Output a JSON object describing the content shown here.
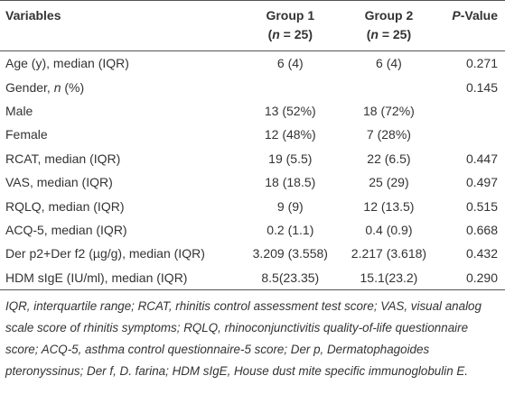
{
  "table": {
    "header": [
      [
        [
          "Variables"
        ]
      ],
      [
        [
          "Group 1"
        ],
        [
          "(",
          "n",
          " = 25)"
        ]
      ],
      [
        [
          "Group 2"
        ],
        [
          "(",
          "n",
          " = 25)"
        ]
      ],
      [
        [
          "",
          "P",
          "-Value"
        ]
      ]
    ],
    "rows": [
      [
        [
          "Age (y), median (IQR)"
        ],
        "6 (4)",
        "6 (4)",
        "0.271"
      ],
      [
        [
          "Gender, ",
          "n",
          " (%)"
        ],
        "",
        "",
        "0.145"
      ],
      [
        [
          "Male"
        ],
        "13 (52%)",
        "18 (72%)",
        ""
      ],
      [
        [
          "Female"
        ],
        "12 (48%)",
        "7 (28%)",
        ""
      ],
      [
        [
          "RCAT, median (IQR)"
        ],
        "19 (5.5)",
        "22 (6.5)",
        "0.447"
      ],
      [
        [
          "VAS, median (IQR)"
        ],
        "18 (18.5)",
        "25 (29)",
        "0.497"
      ],
      [
        [
          "RQLQ, median (IQR)"
        ],
        "9 (9)",
        "12 (13.5)",
        "0.515"
      ],
      [
        [
          "ACQ-5, median (IQR)"
        ],
        "0.2 (1.1)",
        "0.4 (0.9)",
        "0.668"
      ],
      [
        [
          "Der p2+Der f2 (µg/g), median (IQR)"
        ],
        "3.209 (3.558)",
        "2.217 (3.618)",
        "0.432"
      ],
      [
        [
          "HDM sIgE (IU/ml), median (IQR)"
        ],
        "8.5(23.35)",
        "15.1(23.2)",
        "0.290"
      ]
    ],
    "footnote": "IQR, interquartile range; RCAT, rhinitis control assessment test score; VAS, visual analog scale score of rhinitis symptoms; RQLQ, rhinoconjunctivitis quality-of-life questionnaire score; ACQ-5, asthma control questionnaire-5 score; Der p, Dermatophagoides pteronyssinus; Der f, D. farina; HDM sIgE, House dust mite specific immunoglobulin E."
  }
}
